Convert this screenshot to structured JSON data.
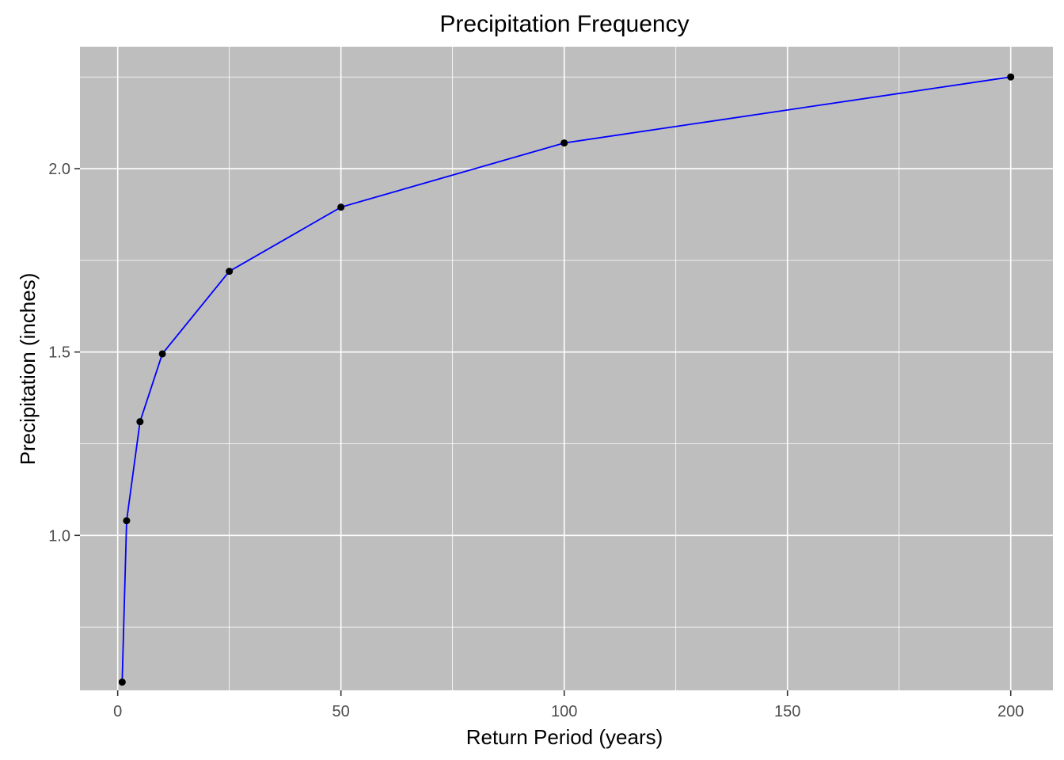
{
  "chart_data": {
    "type": "line",
    "title": "Precipitation Frequency",
    "xlabel": "Return Period (years)",
    "ylabel": "Precipitation (inches)",
    "x": [
      1,
      2,
      5,
      10,
      25,
      50,
      100,
      200
    ],
    "series": [
      {
        "values": [
          0.6,
          1.04,
          1.31,
          1.495,
          1.72,
          1.895,
          2.07,
          2.25
        ]
      }
    ],
    "xlim": [
      -8.45,
      209.45
    ],
    "ylim": [
      0.5775,
      2.3325
    ],
    "xticks": [
      0,
      50,
      100,
      150,
      200
    ],
    "xtick_labels": [
      "0",
      "50",
      "100",
      "150",
      "200"
    ],
    "xminor": [
      25,
      75,
      125,
      175
    ],
    "yticks": [
      1.0,
      1.5,
      2.0
    ],
    "ytick_labels": [
      "1.0",
      "1.5",
      "2.0"
    ],
    "yminor": [
      0.75,
      1.25,
      1.75,
      2.25
    ],
    "grid": true,
    "legend": "none",
    "colors": {
      "panel_background": "#bebebe",
      "gridline": "#ffffff",
      "line": "#0000ff",
      "point": "#000000"
    }
  }
}
